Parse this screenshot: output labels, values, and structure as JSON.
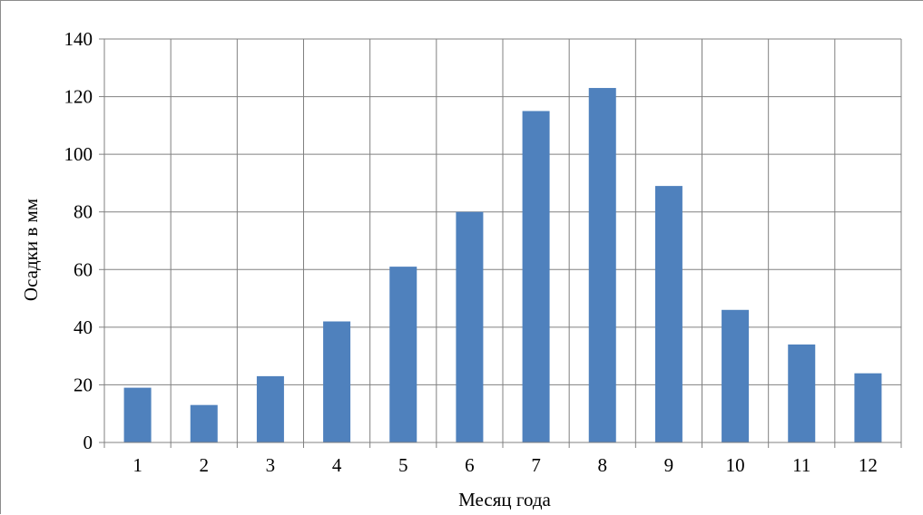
{
  "chart_data": {
    "type": "bar",
    "categories": [
      "1",
      "2",
      "3",
      "4",
      "5",
      "6",
      "7",
      "8",
      "9",
      "10",
      "11",
      "12"
    ],
    "values": [
      19,
      13,
      23,
      42,
      61,
      80,
      115,
      123,
      89,
      46,
      34,
      24
    ],
    "title": "",
    "xlabel": "Месяц  года",
    "ylabel": "Осадки в мм",
    "ylim": [
      0,
      140
    ],
    "yticks": [
      "0",
      "20",
      "40",
      "60",
      "80",
      "100",
      "120",
      "140"
    ],
    "grid": true,
    "legend": "none",
    "bar_color": "#4f81bd",
    "grid_color": "#808080"
  }
}
